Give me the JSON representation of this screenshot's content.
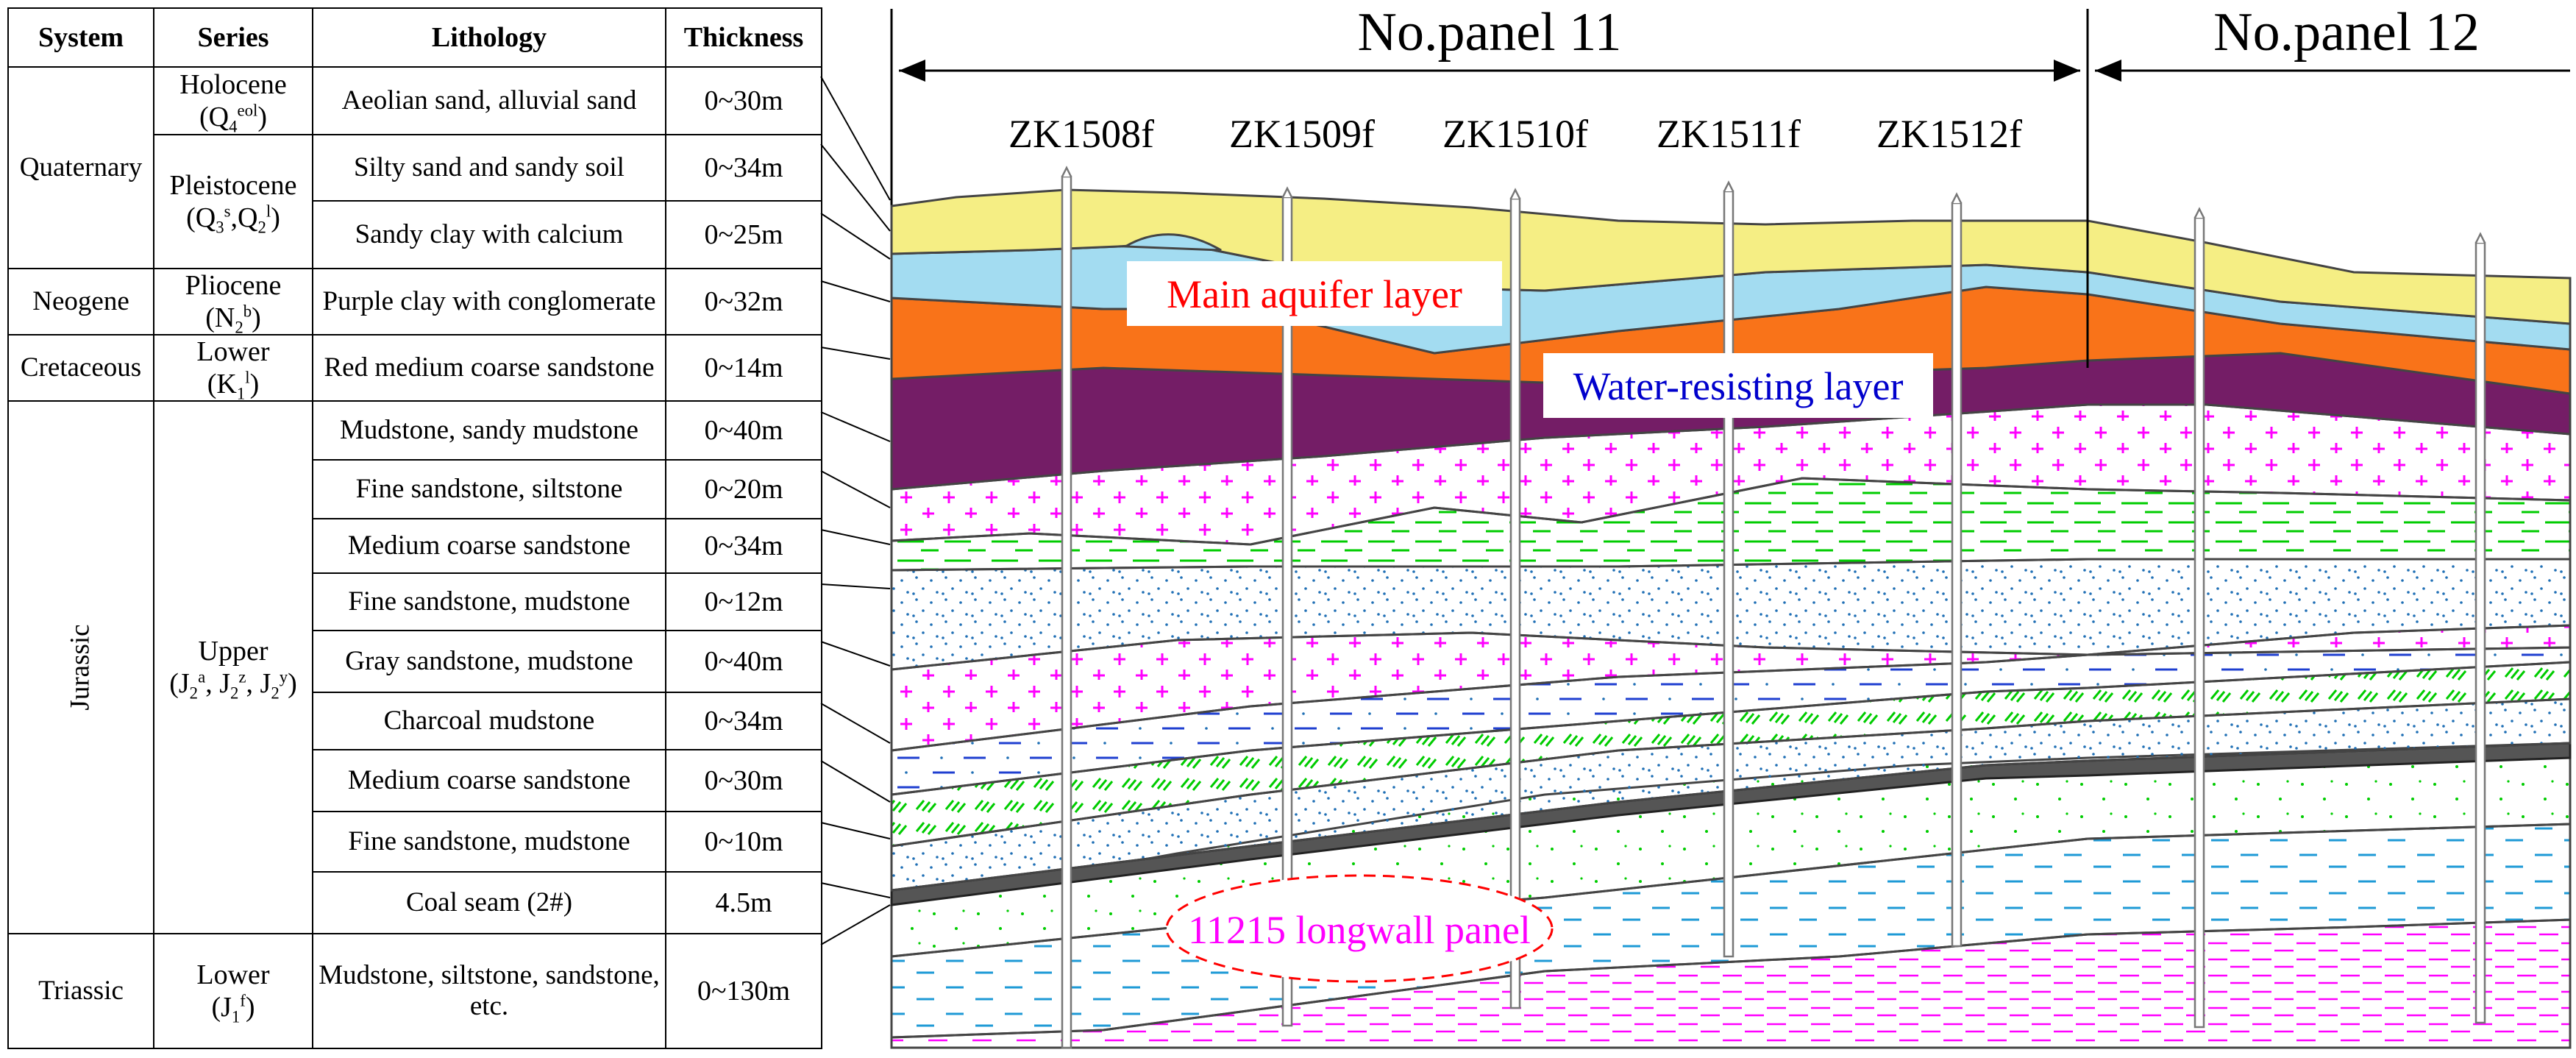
{
  "table": {
    "headers": [
      "System",
      "Series",
      "Lithology",
      "Thickness"
    ],
    "systems": {
      "quaternary": "Quaternary",
      "neogene": "Neogene",
      "cretaceous": "Cretaceous",
      "jurassic": "Jurassic",
      "triassic": "Triassic"
    },
    "series": {
      "holocene": "Holocene",
      "holocene_symbol": "(Q4eol)",
      "pleistocene": "Pleistocene",
      "pleistocene_symbol": "(Q3s,Q2l)",
      "pliocene": "Pliocene",
      "pliocene_symbol": "(N2b)",
      "cretaceous_lower": "Lower",
      "cretaceous_symbol": "(K1l)",
      "jurassic_upper": "Upper",
      "jurassic_symbol": "(J2a, J2z, J2y)",
      "triassic_lower": "Lower",
      "triassic_symbol": "(J1f)"
    },
    "rows": [
      {
        "lithology": "Aeolian sand, alluvial sand",
        "thickness": "0~30m"
      },
      {
        "lithology": "Silty sand and sandy soil",
        "thickness": "0~34m"
      },
      {
        "lithology": "Sandy clay with calcium",
        "thickness": "0~25m"
      },
      {
        "lithology": "Purple clay with conglomerate",
        "thickness": "0~32m"
      },
      {
        "lithology": "Red medium coarse sandstone",
        "thickness": "0~14m"
      },
      {
        "lithology": "Mudstone, sandy mudstone",
        "thickness": "0~40m"
      },
      {
        "lithology": "Fine sandstone, siltstone",
        "thickness": "0~20m"
      },
      {
        "lithology": "Medium coarse sandstone",
        "thickness": "0~34m"
      },
      {
        "lithology": "Fine sandstone, mudstone",
        "thickness": "0~12m"
      },
      {
        "lithology": "Gray sandstone, mudstone",
        "thickness": "0~40m"
      },
      {
        "lithology": "Charcoal mudstone",
        "thickness": "0~34m"
      },
      {
        "lithology": "Medium coarse sandstone",
        "thickness": "0~30m"
      },
      {
        "lithology": "Fine sandstone, mudstone",
        "thickness": "0~10m"
      },
      {
        "lithology": "Coal seam (2#)",
        "thickness": "4.5m"
      },
      {
        "lithology": "Mudstone, siltstone, sandstone, etc.",
        "thickness": "0~130m"
      }
    ]
  },
  "section": {
    "panel_11": "No.panel 11",
    "panel_12": "No.panel 12",
    "boreholes": [
      "ZK1508f",
      "ZK1509f",
      "ZK1510f",
      "ZK1511f",
      "ZK1512f"
    ],
    "label_aquifer": "Main aquifer layer",
    "label_water_resisting": "Water-resisting layer",
    "label_longwall": "11215 longwall panel"
  },
  "colors": {
    "aeolian_sand": "#f5ee84",
    "aquifer": "#a3dcf1",
    "purple_clay": "#f97319",
    "red_sandstone": "#741d66",
    "plus_pattern": "#ff00ff",
    "dash_green": "#00cc00",
    "dots_blue": "#1f6fb5",
    "coal": "#555555",
    "label_red": "#ff0000",
    "label_blue": "#0000cc",
    "label_magenta": "#ff00ff"
  }
}
